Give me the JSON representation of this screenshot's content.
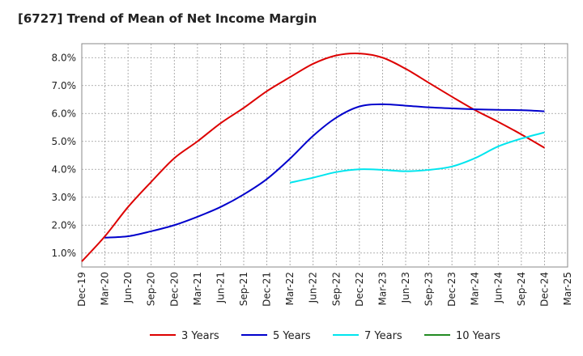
{
  "chart_data": {
    "type": "line",
    "title": "[6727]  Trend of Mean of Net Income Margin",
    "xlabel": "",
    "ylabel": "",
    "x_ticks": [
      "Dec-19",
      "Mar-20",
      "Jun-20",
      "Sep-20",
      "Dec-20",
      "Mar-21",
      "Jun-21",
      "Sep-21",
      "Dec-21",
      "Mar-22",
      "Jun-22",
      "Sep-22",
      "Dec-22",
      "Mar-23",
      "Jun-23",
      "Sep-23",
      "Dec-23",
      "Mar-24",
      "Jun-24",
      "Sep-24",
      "Dec-24",
      "Mar-25"
    ],
    "y_ticks": [
      "1.0%",
      "2.0%",
      "3.0%",
      "4.0%",
      "5.0%",
      "6.0%",
      "7.0%",
      "8.0%"
    ],
    "ylim": [
      0.5,
      8.5
    ],
    "grid": true,
    "legend_position": "bottom",
    "series": [
      {
        "name": "3 Years",
        "color": "#dd0000",
        "values": [
          [
            "Dec-19",
            0.7
          ],
          [
            "Mar-20",
            1.6
          ],
          [
            "Jun-20",
            2.65
          ],
          [
            "Sep-20",
            3.55
          ],
          [
            "Dec-20",
            4.4
          ],
          [
            "Mar-21",
            5.0
          ],
          [
            "Jun-21",
            5.65
          ],
          [
            "Sep-21",
            6.2
          ],
          [
            "Dec-21",
            6.8
          ],
          [
            "Mar-22",
            7.3
          ],
          [
            "Jun-22",
            7.78
          ],
          [
            "Sep-22",
            8.08
          ],
          [
            "Dec-22",
            8.15
          ],
          [
            "Mar-23",
            8.0
          ],
          [
            "Jun-23",
            7.6
          ],
          [
            "Sep-23",
            7.1
          ],
          [
            "Dec-23",
            6.6
          ],
          [
            "Mar-24",
            6.12
          ],
          [
            "Jun-24",
            5.7
          ],
          [
            "Sep-24",
            5.25
          ],
          [
            "Dec-24",
            4.77
          ]
        ]
      },
      {
        "name": "5 Years",
        "color": "#0000cc",
        "values": [
          [
            "Mar-20",
            1.55
          ],
          [
            "Jun-20",
            1.6
          ],
          [
            "Sep-20",
            1.78
          ],
          [
            "Dec-20",
            2.0
          ],
          [
            "Mar-21",
            2.3
          ],
          [
            "Jun-21",
            2.65
          ],
          [
            "Sep-21",
            3.1
          ],
          [
            "Dec-21",
            3.65
          ],
          [
            "Mar-22",
            4.38
          ],
          [
            "Jun-22",
            5.2
          ],
          [
            "Sep-22",
            5.85
          ],
          [
            "Dec-22",
            6.25
          ],
          [
            "Mar-23",
            6.33
          ],
          [
            "Jun-23",
            6.28
          ],
          [
            "Sep-23",
            6.22
          ],
          [
            "Dec-23",
            6.18
          ],
          [
            "Mar-24",
            6.15
          ],
          [
            "Jun-24",
            6.13
          ],
          [
            "Sep-24",
            6.12
          ],
          [
            "Dec-24",
            6.08
          ]
        ]
      },
      {
        "name": "7 Years",
        "color": "#00e5ee",
        "values": [
          [
            "Mar-22",
            3.52
          ],
          [
            "Jun-22",
            3.7
          ],
          [
            "Sep-22",
            3.9
          ],
          [
            "Dec-22",
            4.0
          ],
          [
            "Mar-23",
            3.98
          ],
          [
            "Jun-23",
            3.93
          ],
          [
            "Sep-23",
            3.98
          ],
          [
            "Dec-23",
            4.1
          ],
          [
            "Mar-24",
            4.4
          ],
          [
            "Jun-24",
            4.82
          ],
          [
            "Sep-24",
            5.1
          ],
          [
            "Dec-24",
            5.32
          ]
        ]
      },
      {
        "name": "10 Years",
        "color": "#228b22",
        "values": []
      }
    ]
  }
}
